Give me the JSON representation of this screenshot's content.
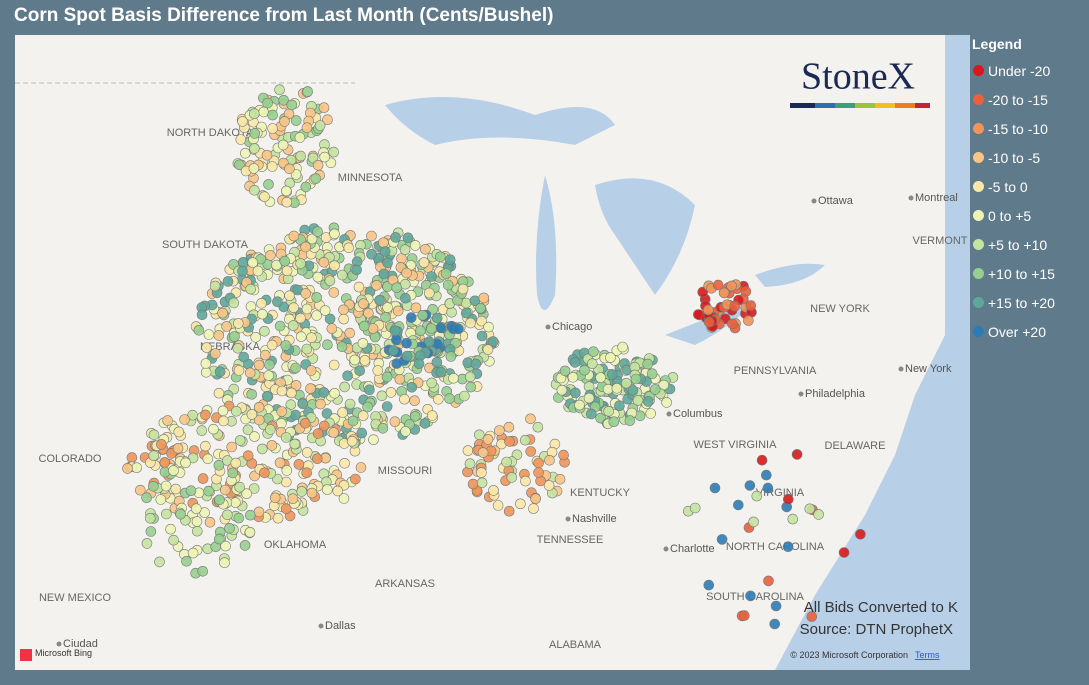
{
  "title": "Corn Spot Basis Difference from Last Month (Cents/Bushel)",
  "legend": {
    "title": "Legend",
    "items": [
      {
        "label": "Under -20",
        "color": "#d7191c"
      },
      {
        "label": "-20 to -15",
        "color": "#e8603c"
      },
      {
        "label": "-15 to -10",
        "color": "#f0955a"
      },
      {
        "label": "-10 to -5",
        "color": "#f8c586"
      },
      {
        "label": "-5 to 0",
        "color": "#fbe8a6"
      },
      {
        "label": "0 to +5",
        "color": "#eef5b4"
      },
      {
        "label": "+5 to +10",
        "color": "#c4e4a0"
      },
      {
        "label": "+10 to +15",
        "color": "#96cf8f"
      },
      {
        "label": "+15 to +20",
        "color": "#5fa79a"
      },
      {
        "label": "Over +20",
        "color": "#2c7bb6"
      }
    ]
  },
  "logo": "StoneX",
  "notes": [
    "All Bids Converted to K",
    "Source: DTN ProphetX"
  ],
  "attribution": {
    "copyright": "© 2023 Microsoft Corporation",
    "terms": "Terms",
    "provider": "Microsoft Bing"
  },
  "states": [
    "NORTH DAKOTA",
    "MINNESOTA",
    "SOUTH DAKOTA",
    "NEBRASKA",
    "COLORADO",
    "MISSOURI",
    "KENTUCKY",
    "TENNESSEE",
    "ARKANSAS",
    "OKLAHOMA",
    "NEW MEXICO",
    "ALABAMA",
    "WEST VIRGINIA",
    "VIRGINIA",
    "NORTH CAROLINA",
    "SOUTH CAROLINA",
    "NEW YORK",
    "PENNSYLVANIA",
    "DELAWARE",
    "VERMONT"
  ],
  "cities": [
    "Ottawa",
    "Montreal",
    "Chicago",
    "Columbus",
    "Nashville",
    "Charlotte",
    "Dallas",
    "Philadelphia",
    "New York",
    "Ciudad"
  ]
}
